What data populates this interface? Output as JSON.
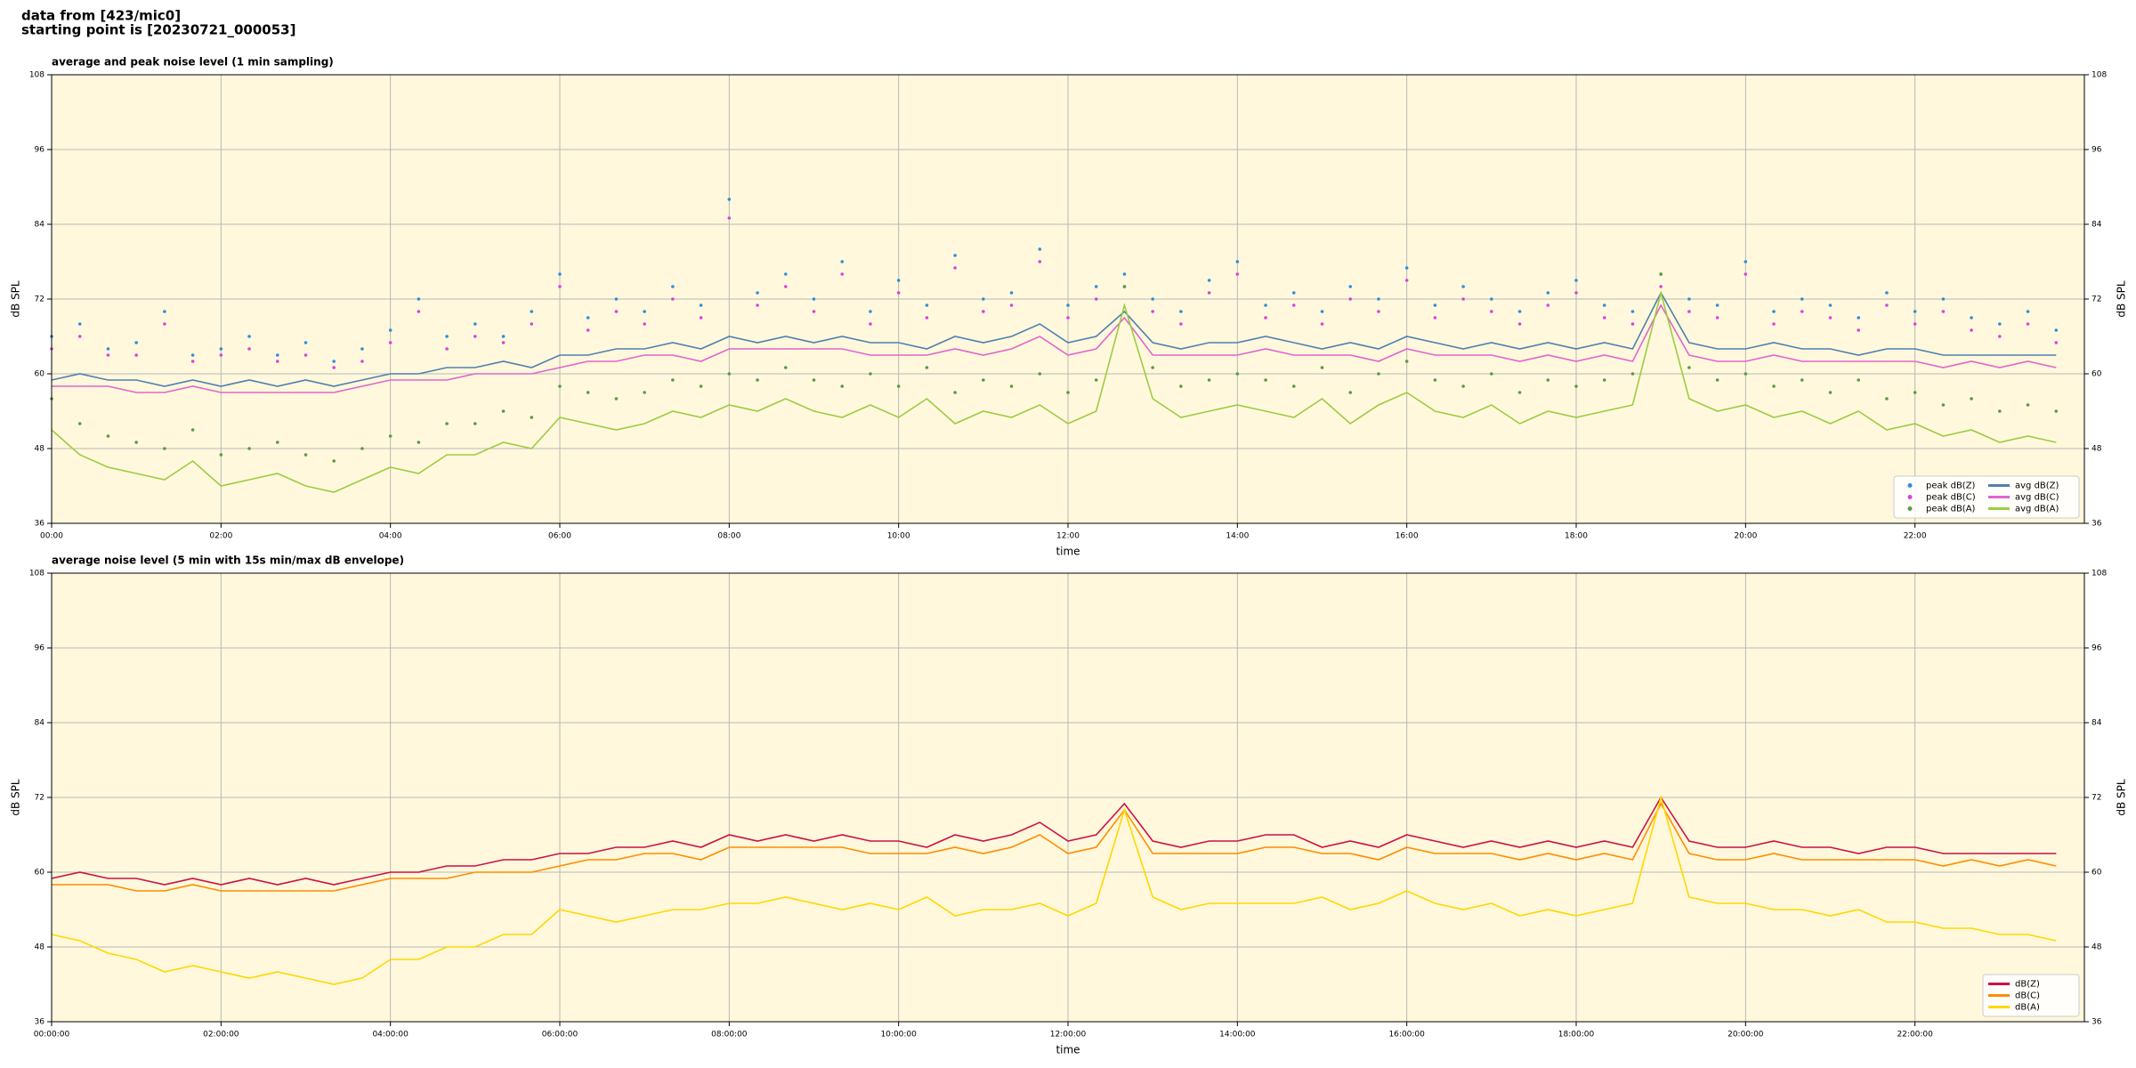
{
  "header": {
    "lines": [
      "data from [423/mic0]",
      "starting point is [20230721_000053]"
    ]
  },
  "chart_data": [
    {
      "type": "line",
      "title": "average and peak noise level (1 min sampling)",
      "xlabel": "time",
      "ylabel": "dB SPL",
      "y2label": "dB SPL",
      "background": "#fff8dc",
      "grid": true,
      "legend": "lower right",
      "legend_ncol": 2,
      "xlim": [
        "00:00",
        "24:00"
      ],
      "xticks": [
        "00:00",
        "02:00",
        "04:00",
        "06:00",
        "08:00",
        "10:00",
        "12:00",
        "14:00",
        "16:00",
        "18:00",
        "20:00",
        "22:00"
      ],
      "ylim": [
        36,
        108
      ],
      "yticks": [
        36,
        48,
        60,
        72,
        84,
        96,
        108
      ],
      "y2lim": [
        36,
        108
      ],
      "y2ticks": [
        36,
        48,
        60,
        72,
        84,
        96,
        108
      ],
      "x": [
        "00:00",
        "00:20",
        "00:40",
        "01:00",
        "01:20",
        "01:40",
        "02:00",
        "02:20",
        "02:40",
        "03:00",
        "03:20",
        "03:40",
        "04:00",
        "04:20",
        "04:40",
        "05:00",
        "05:20",
        "05:40",
        "06:00",
        "06:20",
        "06:40",
        "07:00",
        "07:20",
        "07:40",
        "08:00",
        "08:20",
        "08:40",
        "09:00",
        "09:20",
        "09:40",
        "10:00",
        "10:20",
        "10:40",
        "11:00",
        "11:20",
        "11:40",
        "12:00",
        "12:20",
        "12:40",
        "13:00",
        "13:20",
        "13:40",
        "14:00",
        "14:20",
        "14:40",
        "15:00",
        "15:20",
        "15:40",
        "16:00",
        "16:20",
        "16:40",
        "17:00",
        "17:20",
        "17:40",
        "18:00",
        "18:20",
        "18:40",
        "19:00",
        "19:20",
        "19:40",
        "20:00",
        "20:20",
        "20:40",
        "21:00",
        "21:20",
        "21:40",
        "22:00",
        "22:20",
        "22:40",
        "23:00",
        "23:20",
        "23:40"
      ],
      "series": [
        {
          "name": "peak dB(Z)",
          "type": "scatter",
          "color": "#2f8fd8",
          "values": [
            66,
            68,
            64,
            65,
            70,
            63,
            64,
            66,
            63,
            65,
            62,
            64,
            67,
            72,
            66,
            68,
            66,
            70,
            76,
            69,
            72,
            70,
            74,
            71,
            88,
            73,
            76,
            72,
            78,
            70,
            75,
            71,
            79,
            72,
            73,
            80,
            71,
            74,
            76,
            72,
            70,
            75,
            78,
            71,
            73,
            70,
            74,
            72,
            77,
            71,
            74,
            72,
            70,
            73,
            75,
            71,
            70,
            76,
            72,
            71,
            78,
            70,
            72,
            71,
            69,
            73,
            70,
            72,
            69,
            68,
            70,
            67
          ]
        },
        {
          "name": "peak dB(C)",
          "type": "scatter",
          "color": "#d844d8",
          "values": [
            64,
            66,
            63,
            63,
            68,
            62,
            63,
            64,
            62,
            63,
            61,
            62,
            65,
            70,
            64,
            66,
            65,
            68,
            74,
            67,
            70,
            68,
            72,
            69,
            85,
            71,
            74,
            70,
            76,
            68,
            73,
            69,
            77,
            70,
            71,
            78,
            69,
            72,
            74,
            70,
            68,
            73,
            76,
            69,
            71,
            68,
            72,
            70,
            75,
            69,
            72,
            70,
            68,
            71,
            73,
            69,
            68,
            74,
            70,
            69,
            76,
            68,
            70,
            69,
            67,
            71,
            68,
            70,
            67,
            66,
            68,
            65
          ]
        },
        {
          "name": "peak dB(A)",
          "type": "scatter",
          "color": "#5a9a48",
          "values": [
            56,
            52,
            50,
            49,
            48,
            51,
            47,
            48,
            49,
            47,
            46,
            48,
            50,
            49,
            52,
            52,
            54,
            53,
            58,
            57,
            56,
            57,
            59,
            58,
            60,
            59,
            61,
            59,
            58,
            60,
            58,
            61,
            57,
            59,
            58,
            60,
            57,
            59,
            74,
            61,
            58,
            59,
            60,
            59,
            58,
            61,
            57,
            60,
            62,
            59,
            58,
            60,
            57,
            59,
            58,
            59,
            60,
            76,
            61,
            59,
            60,
            58,
            59,
            57,
            59,
            56,
            57,
            55,
            56,
            54,
            55,
            54
          ]
        },
        {
          "name": "avg dB(Z)",
          "color": "#4f80b0",
          "values": [
            59,
            60,
            59,
            59,
            58,
            59,
            58,
            59,
            58,
            59,
            58,
            59,
            60,
            60,
            61,
            61,
            62,
            61,
            63,
            63,
            64,
            64,
            65,
            64,
            66,
            65,
            66,
            65,
            66,
            65,
            65,
            64,
            66,
            65,
            66,
            68,
            65,
            66,
            70,
            65,
            64,
            65,
            65,
            66,
            65,
            64,
            65,
            64,
            66,
            65,
            64,
            65,
            64,
            65,
            64,
            65,
            64,
            73,
            65,
            64,
            64,
            65,
            64,
            64,
            63,
            64,
            64,
            63,
            63,
            63,
            63,
            63
          ]
        },
        {
          "name": "avg dB(C)",
          "color": "#e066cc",
          "values": [
            58,
            58,
            58,
            57,
            57,
            58,
            57,
            57,
            57,
            57,
            57,
            58,
            59,
            59,
            59,
            60,
            60,
            60,
            61,
            62,
            62,
            63,
            63,
            62,
            64,
            64,
            64,
            64,
            64,
            63,
            63,
            63,
            64,
            63,
            64,
            66,
            63,
            64,
            69,
            63,
            63,
            63,
            63,
            64,
            63,
            63,
            63,
            62,
            64,
            63,
            63,
            63,
            62,
            63,
            62,
            63,
            62,
            71,
            63,
            62,
            62,
            63,
            62,
            62,
            62,
            62,
            62,
            61,
            62,
            61,
            62,
            61
          ]
        },
        {
          "name": "avg dB(A)",
          "color": "#9ccc44",
          "values": [
            51,
            47,
            45,
            44,
            43,
            46,
            42,
            43,
            44,
            42,
            41,
            43,
            45,
            44,
            47,
            47,
            49,
            48,
            53,
            52,
            51,
            52,
            54,
            53,
            55,
            54,
            56,
            54,
            53,
            55,
            53,
            56,
            52,
            54,
            53,
            55,
            52,
            54,
            71,
            56,
            53,
            54,
            55,
            54,
            53,
            56,
            52,
            55,
            57,
            54,
            53,
            55,
            52,
            54,
            53,
            54,
            55,
            73,
            56,
            54,
            55,
            53,
            54,
            52,
            54,
            51,
            52,
            50,
            51,
            49,
            50,
            49
          ]
        }
      ]
    },
    {
      "type": "line",
      "title": "average noise level (5 min with 15s min/max dB envelope)",
      "xlabel": "time",
      "ylabel": "dB SPL",
      "y2label": "dB SPL",
      "background": "#fff8dc",
      "grid": true,
      "legend": "lower right",
      "legend_ncol": 1,
      "xlim": [
        "00:00:00",
        "24:00:00"
      ],
      "xticks": [
        "00:00:00",
        "02:00:00",
        "04:00:00",
        "06:00:00",
        "08:00:00",
        "10:00:00",
        "12:00:00",
        "14:00:00",
        "16:00:00",
        "18:00:00",
        "20:00:00",
        "22:00:00"
      ],
      "ylim": [
        36,
        108
      ],
      "yticks": [
        36,
        48,
        60,
        72,
        84,
        96,
        108
      ],
      "y2lim": [
        36,
        108
      ],
      "y2ticks": [
        36,
        48,
        60,
        72,
        84,
        96,
        108
      ],
      "x": [
        "00:00:00",
        "00:20:00",
        "00:40:00",
        "01:00:00",
        "01:20:00",
        "01:40:00",
        "02:00:00",
        "02:20:00",
        "02:40:00",
        "03:00:00",
        "03:20:00",
        "03:40:00",
        "04:00:00",
        "04:20:00",
        "04:40:00",
        "05:00:00",
        "05:20:00",
        "05:40:00",
        "06:00:00",
        "06:20:00",
        "06:40:00",
        "07:00:00",
        "07:20:00",
        "07:40:00",
        "08:00:00",
        "08:20:00",
        "08:40:00",
        "09:00:00",
        "09:20:00",
        "09:40:00",
        "10:00:00",
        "10:20:00",
        "10:40:00",
        "11:00:00",
        "11:20:00",
        "11:40:00",
        "12:00:00",
        "12:20:00",
        "12:40:00",
        "13:00:00",
        "13:20:00",
        "13:40:00",
        "14:00:00",
        "14:20:00",
        "14:40:00",
        "15:00:00",
        "15:20:00",
        "15:40:00",
        "16:00:00",
        "16:20:00",
        "16:40:00",
        "17:00:00",
        "17:20:00",
        "17:40:00",
        "18:00:00",
        "18:20:00",
        "18:40:00",
        "19:00:00",
        "19:20:00",
        "19:40:00",
        "20:00:00",
        "20:20:00",
        "20:40:00",
        "21:00:00",
        "21:20:00",
        "21:40:00",
        "22:00:00",
        "22:20:00",
        "22:40:00",
        "23:00:00",
        "23:20:00",
        "23:40:00"
      ],
      "series": [
        {
          "name": "dB(Z)",
          "color": "#cc1144",
          "values": [
            59,
            60,
            59,
            59,
            58,
            59,
            58,
            59,
            58,
            59,
            58,
            59,
            60,
            60,
            61,
            61,
            62,
            62,
            63,
            63,
            64,
            64,
            65,
            64,
            66,
            65,
            66,
            65,
            66,
            65,
            65,
            64,
            66,
            65,
            66,
            68,
            65,
            66,
            71,
            65,
            64,
            65,
            65,
            66,
            66,
            64,
            65,
            64,
            66,
            65,
            64,
            65,
            64,
            65,
            64,
            65,
            64,
            72,
            65,
            64,
            64,
            65,
            64,
            64,
            63,
            64,
            64,
            63,
            63,
            63,
            63,
            63
          ]
        },
        {
          "name": "dB(C)",
          "color": "#ff8c00",
          "values": [
            58,
            58,
            58,
            57,
            57,
            58,
            57,
            57,
            57,
            57,
            57,
            58,
            59,
            59,
            59,
            60,
            60,
            60,
            61,
            62,
            62,
            63,
            63,
            62,
            64,
            64,
            64,
            64,
            64,
            63,
            63,
            63,
            64,
            63,
            64,
            66,
            63,
            64,
            70,
            63,
            63,
            63,
            63,
            64,
            64,
            63,
            63,
            62,
            64,
            63,
            63,
            63,
            62,
            63,
            62,
            63,
            62,
            71,
            63,
            62,
            62,
            63,
            62,
            62,
            62,
            62,
            62,
            61,
            62,
            61,
            62,
            61
          ]
        },
        {
          "name": "dB(A)",
          "color": "#ffd700",
          "values": [
            50,
            49,
            47,
            46,
            44,
            45,
            44,
            43,
            44,
            43,
            42,
            43,
            46,
            46,
            48,
            48,
            50,
            50,
            54,
            53,
            52,
            53,
            54,
            54,
            55,
            55,
            56,
            55,
            54,
            55,
            54,
            56,
            53,
            54,
            54,
            55,
            53,
            55,
            70,
            56,
            54,
            55,
            55,
            55,
            55,
            56,
            54,
            55,
            57,
            55,
            54,
            55,
            53,
            54,
            53,
            54,
            55,
            72,
            56,
            55,
            55,
            54,
            54,
            53,
            54,
            52,
            52,
            51,
            51,
            50,
            50,
            49
          ]
        }
      ]
    }
  ]
}
